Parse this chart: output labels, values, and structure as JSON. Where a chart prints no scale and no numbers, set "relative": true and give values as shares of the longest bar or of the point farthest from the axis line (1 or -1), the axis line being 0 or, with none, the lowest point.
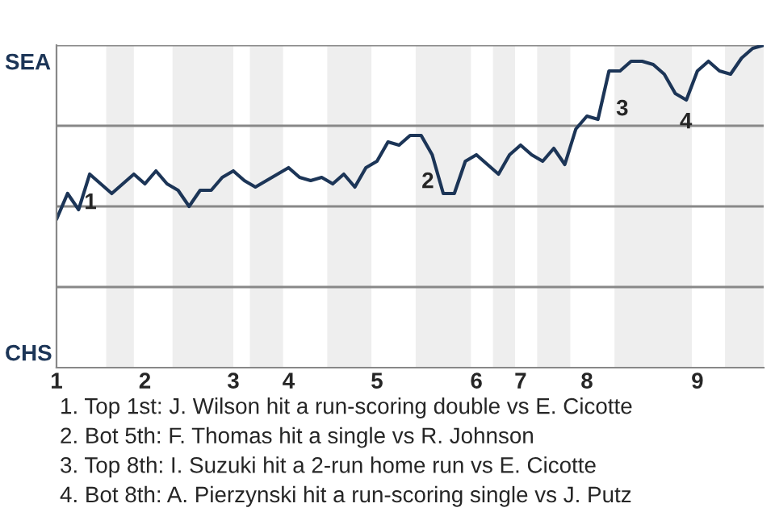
{
  "chart_data": {
    "type": "line",
    "relative": true,
    "categories": [
      "1",
      null,
      null,
      null,
      null,
      null,
      null,
      null,
      "2",
      null,
      null,
      null,
      null,
      null,
      null,
      null,
      "3",
      null,
      null,
      null,
      null,
      "4",
      null,
      null,
      null,
      null,
      null,
      null,
      null,
      "5",
      null,
      null,
      null,
      null,
      null,
      null,
      null,
      null,
      "6",
      null,
      null,
      null,
      "7",
      null,
      null,
      null,
      null,
      null,
      "8",
      null,
      null,
      null,
      null,
      null,
      null,
      null,
      null,
      null,
      "9",
      null,
      null,
      null,
      null,
      null,
      null
    ],
    "grid": "y",
    "marker": "none",
    "line_style": "solid",
    "series": [
      {
        "color": "#1c3557",
        "values": [
          0.46,
          0.54,
          0.49,
          0.6,
          0.57,
          0.54,
          0.57,
          0.6,
          0.57,
          0.61,
          0.57,
          0.55,
          0.5,
          0.55,
          0.55,
          0.59,
          0.61,
          0.58,
          0.56,
          0.58,
          0.6,
          0.62,
          0.59,
          0.58,
          0.59,
          0.57,
          0.6,
          0.56,
          0.62,
          0.64,
          0.7,
          0.69,
          0.72,
          0.72,
          0.66,
          0.54,
          0.54,
          0.64,
          0.66,
          0.63,
          0.6,
          0.66,
          0.69,
          0.66,
          0.64,
          0.68,
          0.63,
          0.74,
          0.78,
          0.77,
          0.92,
          0.92,
          0.95,
          0.95,
          0.94,
          0.91,
          0.85,
          0.83,
          0.92,
          0.95,
          0.92,
          0.91,
          0.96,
          0.99,
          1.0
        ]
      }
    ],
    "annotations": [
      "SEA",
      "CHS",
      "1",
      "2",
      "3",
      "4",
      "1. Top 1st: J. Wilson hit a run-scoring double vs E. Cicotte",
      "2. Bot 5th: F. Thomas hit a single vs R. Johnson",
      "3. Top 8th: I. Suzuki hit a 2-run home run vs E. Cicotte",
      "4. Bot 8th: A. Pierzynski hit a run-scoring single vs J. Putz"
    ]
  }
}
